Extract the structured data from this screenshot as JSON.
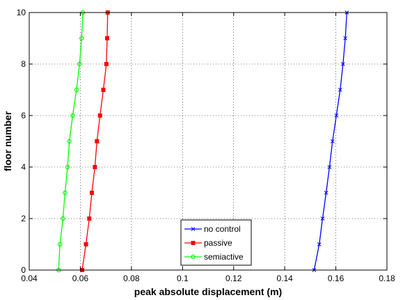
{
  "chart_data": {
    "type": "line",
    "xlabel": "peak absolute displacement (m)",
    "ylabel": "floor number",
    "xlim": [
      0.04,
      0.18
    ],
    "ylim": [
      0,
      10
    ],
    "x_ticks": [
      "0.04",
      "0.06",
      "0.08",
      "0.1",
      "0.12",
      "0.14",
      "0.16",
      "0.18"
    ],
    "y_ticks": [
      "0",
      "2",
      "4",
      "6",
      "8",
      "10"
    ],
    "grid": true,
    "legend_position": "bottom-center",
    "series": [
      {
        "name": "no control",
        "color": "#0000ff",
        "marker": "x",
        "floors": [
          0,
          1,
          2,
          3,
          4,
          5,
          6,
          7,
          8,
          9,
          10
        ],
        "values": [
          0.1515,
          0.1535,
          0.1548,
          0.1562,
          0.1575,
          0.1587,
          0.1602,
          0.1617,
          0.1628,
          0.1637,
          0.1643
        ]
      },
      {
        "name": "passive",
        "color": "#ff0000",
        "marker": "square",
        "floors": [
          0,
          1,
          2,
          3,
          4,
          5,
          6,
          7,
          8,
          9,
          10
        ],
        "values": [
          0.0607,
          0.0622,
          0.0635,
          0.0645,
          0.0657,
          0.0665,
          0.0677,
          0.069,
          0.0702,
          0.0705,
          0.0707
        ]
      },
      {
        "name": "semiactive",
        "color": "#00ff00",
        "marker": "circle",
        "floors": [
          0,
          1,
          2,
          3,
          4,
          5,
          6,
          7,
          8,
          9,
          10
        ],
        "values": [
          0.0515,
          0.052,
          0.0532,
          0.054,
          0.055,
          0.0557,
          0.057,
          0.0585,
          0.0597,
          0.0605,
          0.061
        ]
      }
    ]
  }
}
